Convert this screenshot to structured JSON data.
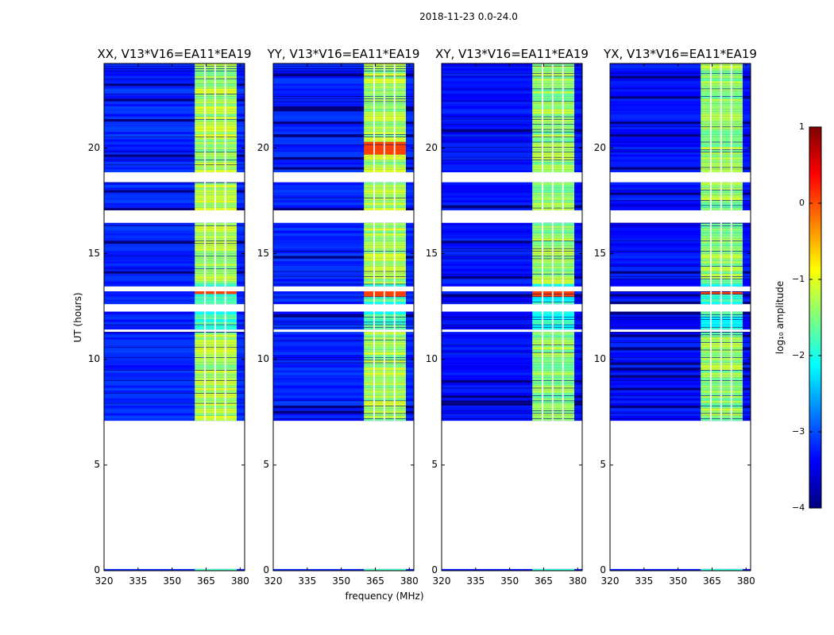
{
  "figure": {
    "suptitle": "2018-11-23 0.0-24.0"
  },
  "chart_data": {
    "type": "heatmap",
    "xlabel": "frequency (MHz)",
    "ylabel": "UT (hours)",
    "xlim": [
      320,
      382
    ],
    "ylim": [
      0,
      24
    ],
    "xticks": [
      320,
      335,
      350,
      365,
      380
    ],
    "yticks": [
      0,
      5,
      10,
      15,
      20
    ],
    "colorbar": {
      "label": "log₁₀ amplitude",
      "range": [
        -4,
        1
      ],
      "ticks": [
        1,
        0,
        -1,
        -2,
        -3,
        -4
      ],
      "colors": [
        "#00007f",
        "#0000ff",
        "#007fff",
        "#00ffff",
        "#7fff7f",
        "#ffff00",
        "#ff7f00",
        "#ff0000",
        "#7f0000"
      ]
    },
    "data_ut_start": 7.1,
    "band": {
      "start_mhz": 360,
      "end_mhz": 378.5
    },
    "band_channel_gaps_mhz": [
      364.5,
      369,
      373.5
    ],
    "gap_intervals_ut": [
      [
        11.3,
        11.4
      ],
      [
        12.3,
        12.6
      ],
      [
        13.2,
        13.5
      ],
      [
        16.5,
        17.0
      ],
      [
        18.4,
        18.8
      ]
    ],
    "panels": [
      {
        "title": "XX, V13*V16=EA11*EA19",
        "background_log_amp": -3.2,
        "band_log_amp": -1.3,
        "band_early_log_amp": -1.8,
        "hot_bands_ut": [
          [
            13.1,
            13.3
          ]
        ]
      },
      {
        "title": "YY, V13*V16=EA11*EA19",
        "background_log_amp": -3.2,
        "band_log_amp": -1.3,
        "band_early_log_amp": -1.8,
        "hot_bands_ut": [
          [
            13.0,
            13.3
          ],
          [
            19.7,
            20.3
          ]
        ]
      },
      {
        "title": "XY, V13*V16=EA11*EA19",
        "background_log_amp": -3.3,
        "band_log_amp": -1.4,
        "band_early_log_amp": -1.9,
        "hot_bands_ut": [
          [
            13.0,
            13.3
          ]
        ]
      },
      {
        "title": "YX, V13*V16=EA11*EA19",
        "background_log_amp": -3.3,
        "band_log_amp": -1.4,
        "band_early_log_amp": -1.9,
        "hot_bands_ut": [
          [
            13.1,
            13.3
          ]
        ]
      }
    ]
  }
}
